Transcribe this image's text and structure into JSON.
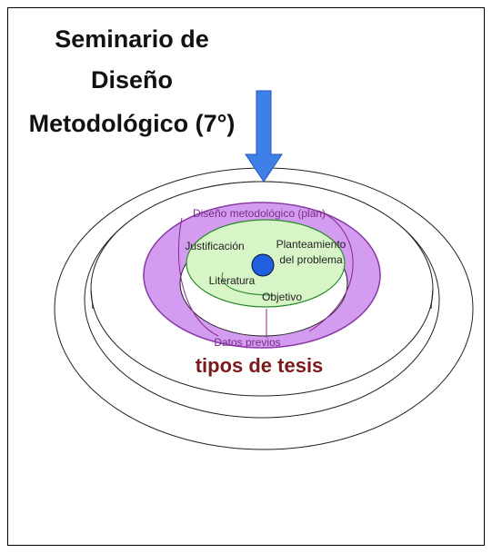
{
  "title": {
    "lines": [
      "Seminario de",
      "Diseño",
      "Metodológico (7°)"
    ]
  },
  "nodes": [
    {
      "label": "Diseño metodológico (plan)"
    },
    {
      "label": "Justificación"
    },
    {
      "label": [
        "Planteamiento",
        "del problema"
      ]
    },
    {
      "label": "Literatura"
    },
    {
      "label": "Objetivo"
    },
    {
      "label": "Datos previos"
    },
    {
      "label": "tipos de tesis"
    }
  ]
}
